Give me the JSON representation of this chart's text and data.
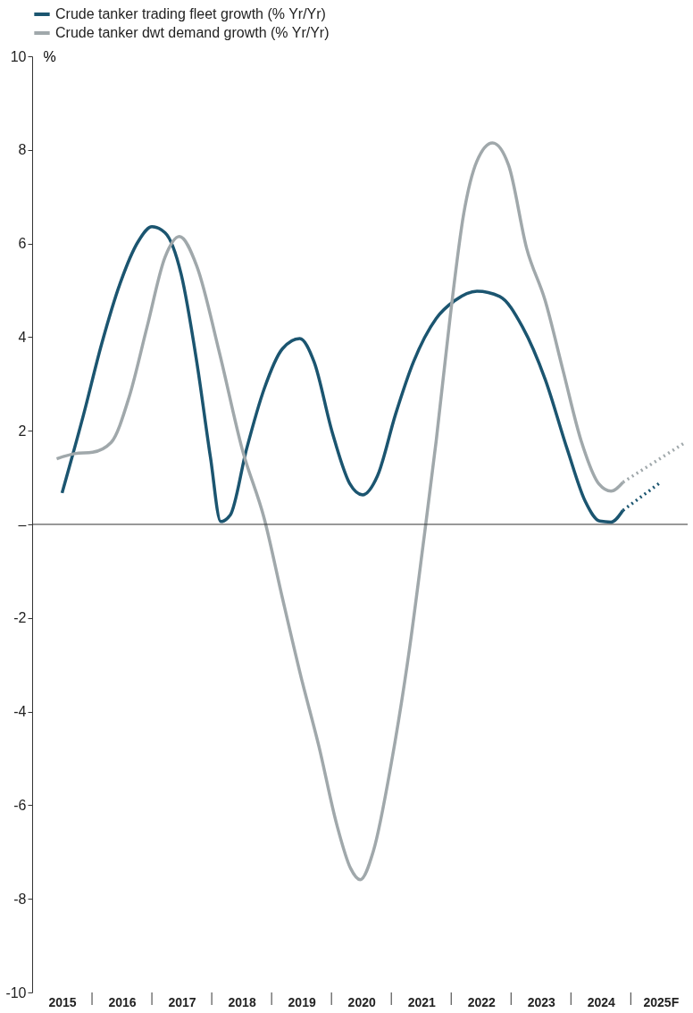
{
  "chart_data": {
    "type": "line",
    "ylabel": "%",
    "xlim": [
      2014.5,
      2025.45
    ],
    "ylim": [
      -10,
      10
    ],
    "yticks": [
      -10,
      -8,
      -6,
      -4,
      -2,
      {
        "value": 0,
        "label": "–"
      },
      2,
      4,
      6,
      8,
      10
    ],
    "xticks": [
      {
        "value": 2015,
        "label": "2015"
      },
      {
        "value": 2015.5,
        "label": null
      },
      {
        "value": 2016,
        "label": "2016"
      },
      {
        "value": 2016.5,
        "label": null
      },
      {
        "value": 2017,
        "label": "2017"
      },
      {
        "value": 2017.5,
        "label": null
      },
      {
        "value": 2018,
        "label": "2018"
      },
      {
        "value": 2018.5,
        "label": null
      },
      {
        "value": 2019,
        "label": "2019"
      },
      {
        "value": 2019.5,
        "label": null
      },
      {
        "value": 2020,
        "label": "2020"
      },
      {
        "value": 2020.5,
        "label": null
      },
      {
        "value": 2021,
        "label": "2021"
      },
      {
        "value": 2021.5,
        "label": null
      },
      {
        "value": 2022,
        "label": "2022"
      },
      {
        "value": 2022.5,
        "label": null
      },
      {
        "value": 2023,
        "label": "2023"
      },
      {
        "value": 2023.5,
        "label": null
      },
      {
        "value": 2024,
        "label": "2024"
      },
      {
        "value": 2024.5,
        "label": null
      },
      {
        "value": 2025,
        "label": "2025F"
      }
    ],
    "grid": false,
    "legend": "top",
    "marker": "none",
    "ref_lines": [
      {
        "axis": "y",
        "value": 0,
        "color": "#333333"
      }
    ],
    "series": [
      {
        "name": "Crude tanker trading fleet growth (% Yr/Yr)",
        "color": "#1b5570",
        "line_style": "solid",
        "x": [
          2015.0,
          2015.36,
          2015.66,
          2015.97,
          2016.27,
          2016.5,
          2016.72,
          2016.99,
          2017.25,
          2017.48,
          2017.65,
          2017.81,
          2018.08,
          2018.38,
          2018.68,
          2018.97,
          2019.21,
          2019.51,
          2019.81,
          2020.02,
          2020.27,
          2020.57,
          2020.87,
          2021.25,
          2021.56,
          2021.93,
          2022.31,
          2022.69,
          2023.07,
          2023.44,
          2023.74,
          2023.98,
          2024.17,
          2024.37
        ],
        "values": [
          0.67,
          2.35,
          3.85,
          5.15,
          6.04,
          6.36,
          6.23,
          5.34,
          3.47,
          1.42,
          0.06,
          0.2,
          1.6,
          2.91,
          3.75,
          3.97,
          3.47,
          1.98,
          0.86,
          0.63,
          1.04,
          2.35,
          3.47,
          4.4,
          4.78,
          4.98,
          4.87,
          4.22,
          3.1,
          1.6,
          0.49,
          0.07,
          0.05,
          0.3
        ]
      },
      {
        "name": "Crude tanker dwt demand growth (% Yr/Yr)",
        "color": "#a0a8ab",
        "line_style": "solid",
        "x": [
          2014.91,
          2015.21,
          2015.51,
          2015.82,
          2016.12,
          2016.42,
          2016.72,
          2016.96,
          2017.25,
          2017.63,
          2018.01,
          2018.38,
          2018.68,
          2018.99,
          2019.29,
          2019.59,
          2019.82,
          2019.98,
          2020.2,
          2020.5,
          2020.8,
          2021.03,
          2021.25,
          2021.48,
          2021.71,
          2021.93,
          2022.19,
          2022.46,
          2022.76,
          2023.07,
          2023.37,
          2023.67,
          2023.97,
          2024.17,
          2024.37
        ],
        "values": [
          1.4,
          1.51,
          1.54,
          1.75,
          2.72,
          4.22,
          5.71,
          6.15,
          5.52,
          3.66,
          1.6,
          0.11,
          -1.57,
          -3.25,
          -4.74,
          -6.42,
          -7.35,
          -7.59,
          -6.98,
          -5.1,
          -2.69,
          -0.45,
          1.79,
          4.4,
          6.64,
          7.76,
          8.15,
          7.67,
          5.9,
          4.78,
          3.28,
          1.79,
          0.86,
          0.71,
          0.9
        ]
      },
      {
        "color": "#1b5570",
        "line_style": "dotted",
        "x": [
          2024.37,
          2025.0
        ],
        "values": [
          0.3,
          0.9
        ]
      },
      {
        "color": "#a0a8ab",
        "line_style": "dotted",
        "x": [
          2024.37,
          2025.41
        ],
        "values": [
          0.9,
          1.75
        ]
      }
    ]
  }
}
